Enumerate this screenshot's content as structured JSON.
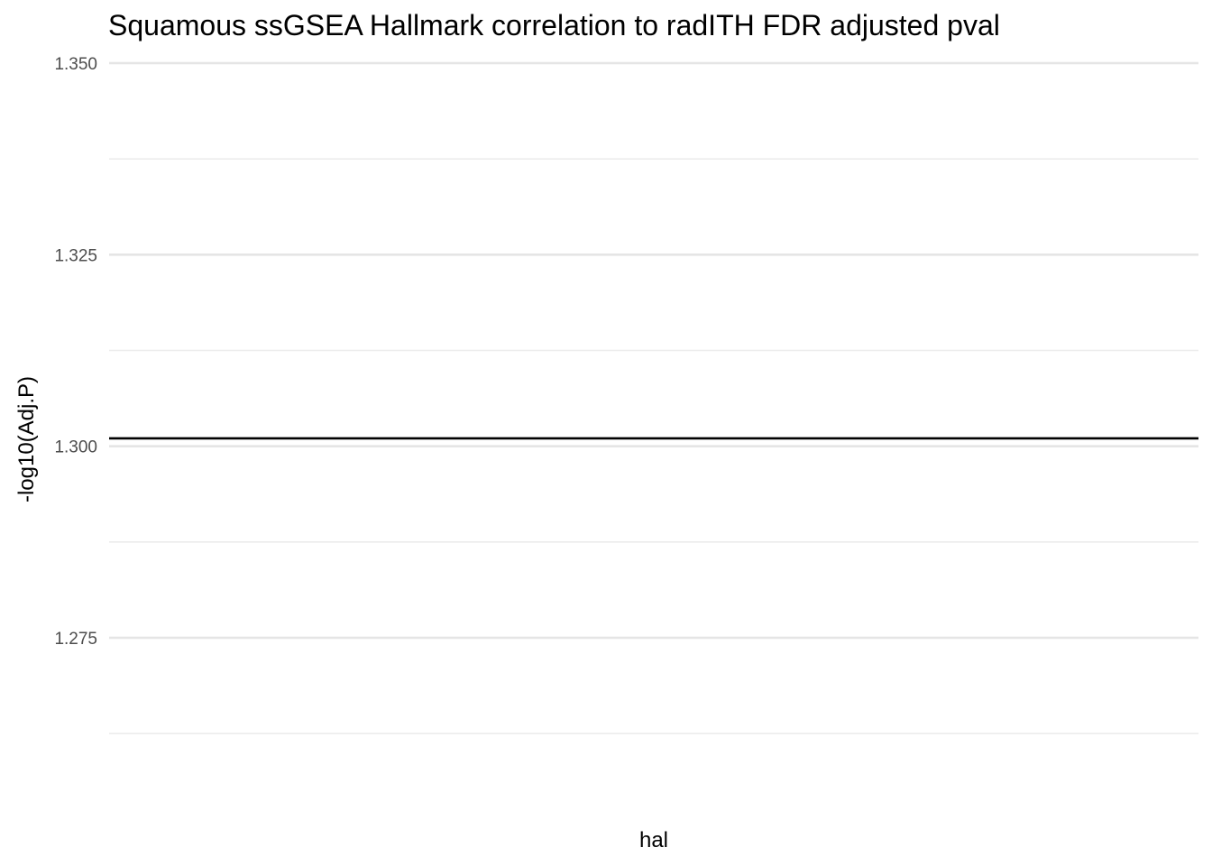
{
  "chart_data": {
    "type": "line",
    "title": "Squamous ssGSEA Hallmark correlation to radITH FDR adjusted pval",
    "xlabel": "hal",
    "ylabel": "-log10(Adj.P)",
    "ylim": [
      1.2585,
      1.3515
    ],
    "y_ticks": [
      "1.350",
      "1.325",
      "1.300",
      "1.275"
    ],
    "y_tick_values": [
      1.35,
      1.325,
      1.3,
      1.275
    ],
    "y_minor_values": [
      1.3375,
      1.3125,
      1.2875,
      1.2625
    ],
    "reference_line": {
      "y": 1.30103,
      "color": "#000000"
    },
    "series": [],
    "grid": true,
    "legend": "none"
  }
}
